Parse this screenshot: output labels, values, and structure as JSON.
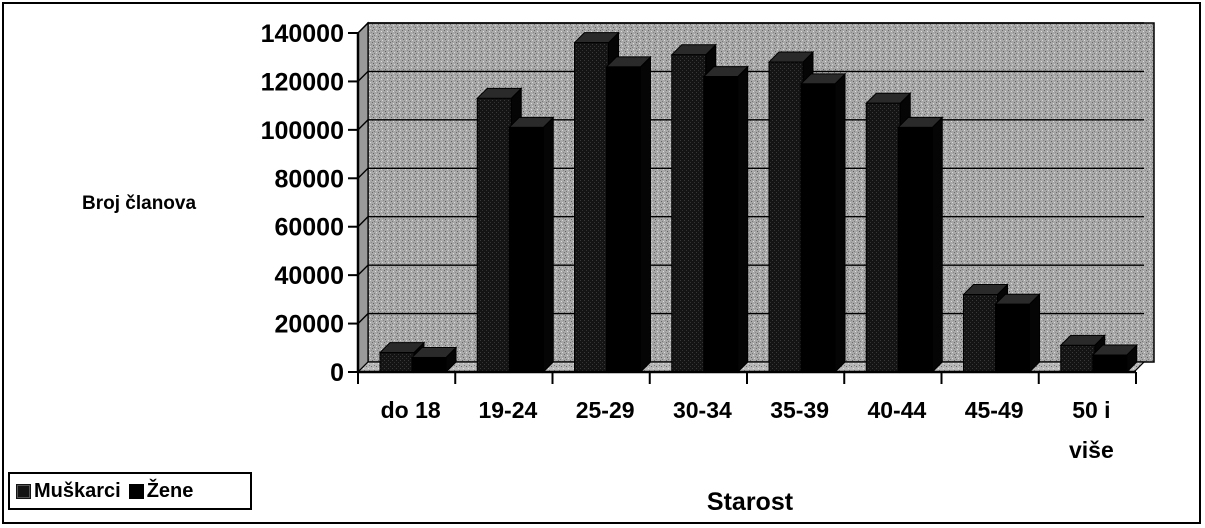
{
  "chart_data": {
    "type": "bar",
    "xlabel": "Starost",
    "ylabel": "Broj članova",
    "ylim": [
      0,
      140000
    ],
    "yticks": [
      "0",
      "20000",
      "40000",
      "60000",
      "80000",
      "100000",
      "120000",
      "140000"
    ],
    "categories": [
      "do 18",
      "19-24",
      "25-29",
      "30-34",
      "35-39",
      "40-44",
      "45-49",
      "50 i više"
    ],
    "series": [
      {
        "name": "Muškarci",
        "values": [
          8000,
          113000,
          136000,
          131000,
          128000,
          111000,
          32000,
          11000
        ]
      },
      {
        "name": "Žene",
        "values": [
          6000,
          101000,
          126000,
          122000,
          119000,
          101000,
          28000,
          7000
        ]
      }
    ],
    "grid": true,
    "legend": "bottom-left",
    "colors": {
      "Muškarci": "#151515",
      "Žene": "#000000",
      "wall": "#a9a9a9",
      "floor": "#b5b5b5"
    }
  }
}
